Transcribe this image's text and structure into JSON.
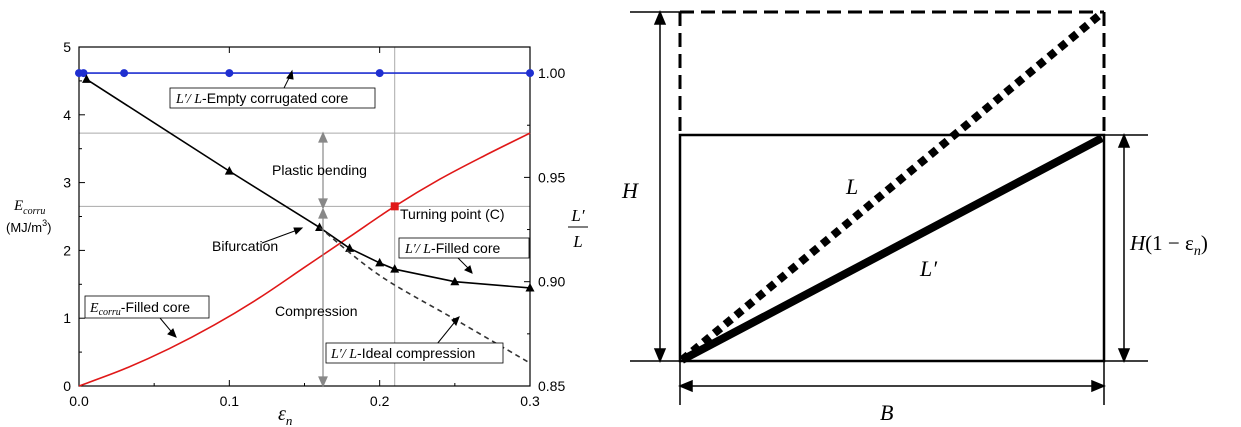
{
  "chart_data": {
    "type": "line",
    "x_axis": {
      "label": "ε",
      "label_sub": "n",
      "range": [
        0,
        0.3
      ],
      "ticks": [
        0,
        0.1,
        0.2,
        0.3
      ],
      "tick_labels": [
        "0.0",
        "0.1",
        "0.2",
        "0.3"
      ]
    },
    "y_axis_left": {
      "label_main": "E",
      "label_sub": "corru",
      "unit_label": "(MJ/m",
      "unit_sup": "3",
      "unit_close": ")",
      "range": [
        0,
        5
      ],
      "ticks": [
        0,
        1,
        2,
        3,
        4,
        5
      ],
      "tick_labels": [
        "0",
        "1",
        "2",
        "3",
        "4",
        "5"
      ]
    },
    "y_axis_right": {
      "label_top": "L′",
      "label_bottom": "L",
      "range": [
        0.85,
        1.0125
      ],
      "ticks": [
        0.85,
        0.9,
        0.95,
        1.0
      ],
      "tick_labels": [
        "0.85",
        "0.90",
        "0.95",
        "1.00"
      ]
    },
    "reference_lines": {
      "x": 0.21,
      "y_left": [
        3.73,
        2.65
      ]
    },
    "series": [
      {
        "axis": "right",
        "color": "#1f2fd0",
        "style": "solid",
        "marker": "circle",
        "x": [
          0,
          0.003,
          0.03,
          0.1,
          0.2,
          0.3
        ],
        "y": [
          1.0,
          1.0,
          1.0,
          1.0,
          1.0,
          1.0
        ]
      },
      {
        "axis": "left",
        "color": "#e01818",
        "style": "solid",
        "marker": "none",
        "x": [
          0,
          0.03,
          0.06,
          0.09,
          0.12,
          0.15,
          0.18,
          0.21,
          0.24,
          0.27,
          0.3
        ],
        "y": [
          0,
          0.25,
          0.55,
          0.9,
          1.3,
          1.75,
          2.2,
          2.65,
          3.05,
          3.4,
          3.73
        ]
      },
      {
        "axis": "right",
        "color": "#000000",
        "style": "solid",
        "marker": "triangle",
        "x": [
          0.005,
          0.1,
          0.16,
          0.18,
          0.2,
          0.21,
          0.25,
          0.3
        ],
        "y": [
          0.997,
          0.953,
          0.926,
          0.916,
          0.909,
          0.906,
          0.9,
          0.897
        ]
      },
      {
        "axis": "right",
        "color": "#333333",
        "style": "dashed",
        "marker": "none",
        "x": [
          0.16,
          0.2,
          0.25,
          0.3
        ],
        "y": [
          0.926,
          0.903,
          0.882,
          0.861
        ]
      }
    ],
    "highlight_point": {
      "x": 0.21,
      "y_left": 2.65,
      "color": "#e01818"
    },
    "annotations": {
      "empty_core": {
        "math": "L′/ L",
        "text": "-Empty corrugated core"
      },
      "filled_core": {
        "math": "L′/ L",
        "text": "-Filled core"
      },
      "ideal": {
        "math": "L′/ L",
        "text": "-Ideal compression"
      },
      "ecorru_filled": {
        "math": "E",
        "math_sub": "corru",
        "text": "-Filled core"
      },
      "plastic_bending": "Plastic bending",
      "turning_point": "Turning point (C)",
      "bifurcation": "Bifurcation",
      "compression": "Compression"
    }
  },
  "diagram": {
    "label_H": "H",
    "label_L": "L",
    "label_Lprime": "L′",
    "label_B": "B",
    "label_H_reduced_a": "H",
    "label_H_reduced_b": "(1 − ε",
    "label_H_reduced_sub": "n",
    "label_H_reduced_c": ")"
  }
}
